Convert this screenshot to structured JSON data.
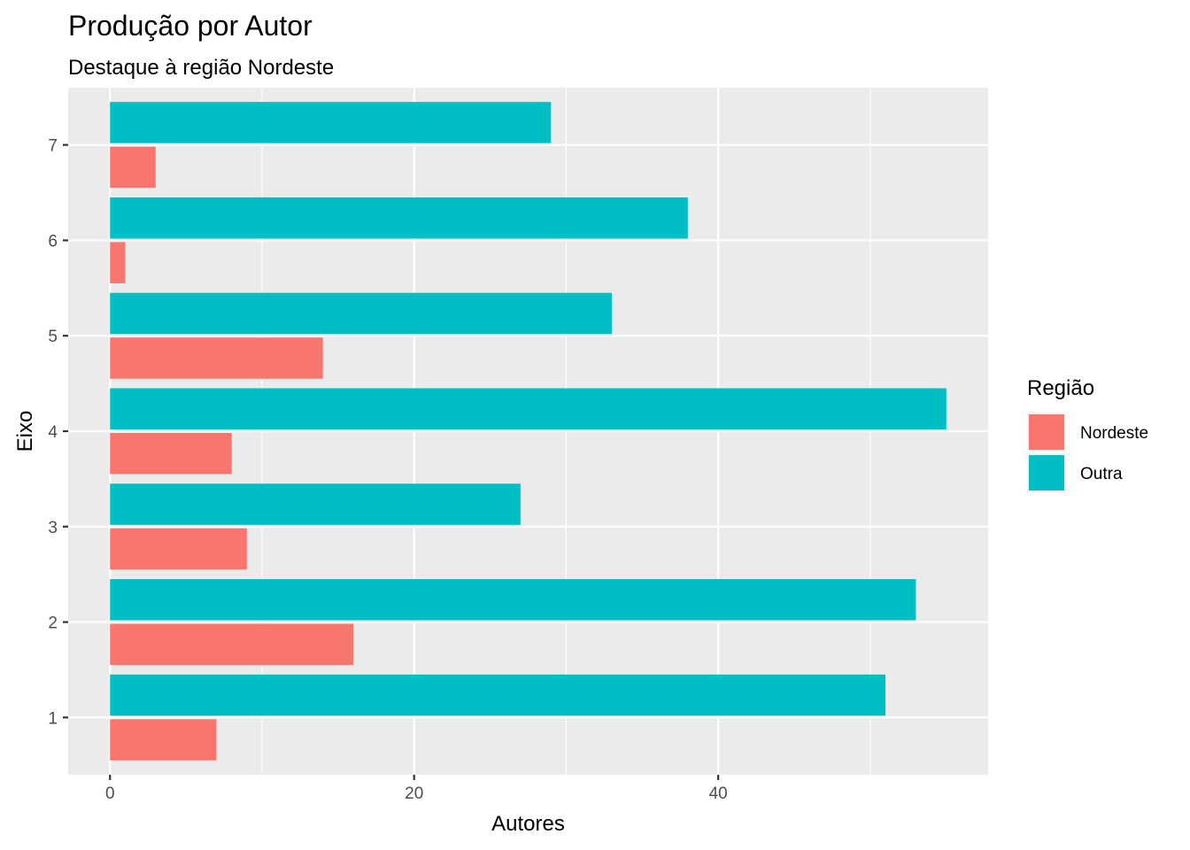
{
  "chart_data": {
    "type": "bar",
    "orientation": "horizontal",
    "title": "Produção por Autor",
    "subtitle": "Destaque à região Nordeste",
    "xlabel": "Autores",
    "ylabel": "Eixo",
    "categories": [
      "1",
      "2",
      "3",
      "4",
      "5",
      "6",
      "7"
    ],
    "series": [
      {
        "name": "Nordeste",
        "color": "#F8766D",
        "values": [
          7,
          16,
          9,
          8,
          14,
          1,
          3
        ]
      },
      {
        "name": "Outra",
        "color": "#00BFC4",
        "values": [
          51,
          53,
          27,
          55,
          33,
          38,
          29
        ]
      }
    ],
    "xlim": [
      -2.75,
      57.75
    ],
    "x_ticks": [
      0,
      20,
      40
    ],
    "grid": true,
    "panel_background": "#EBEBEB",
    "legend": {
      "title": "Região",
      "placement": "right",
      "entries": [
        "Nordeste",
        "Outra"
      ]
    }
  }
}
